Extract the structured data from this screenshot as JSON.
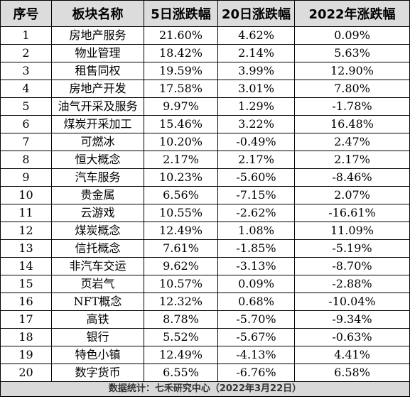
{
  "headers": [
    "序号",
    "板块名称",
    "5日涨跌幅",
    "20日涨跌幅",
    "2022年涨跌幅"
  ],
  "rows": [
    [
      "1",
      "房地产服务",
      "21.60%",
      "4.62%",
      "0.09%"
    ],
    [
      "2",
      "物业管理",
      "18.42%",
      "2.14%",
      "5.63%"
    ],
    [
      "3",
      "租售同权",
      "19.59%",
      "3.99%",
      "12.90%"
    ],
    [
      "4",
      "房地产开发",
      "17.58%",
      "3.01%",
      "7.80%"
    ],
    [
      "5",
      "油气开采及服务",
      "9.97%",
      "1.29%",
      "-1.78%"
    ],
    [
      "6",
      "煤炭开采加工",
      "15.46%",
      "3.22%",
      "16.48%"
    ],
    [
      "7",
      "可燃冰",
      "10.20%",
      "-0.49%",
      "2.47%"
    ],
    [
      "8",
      "恒大概念",
      "2.17%",
      "2.17%",
      "2.17%"
    ],
    [
      "9",
      "汽车服务",
      "10.23%",
      "-5.60%",
      "-8.46%"
    ],
    [
      "10",
      "贵金属",
      "6.56%",
      "-7.15%",
      "2.07%"
    ],
    [
      "11",
      "云游戏",
      "10.55%",
      "-2.62%",
      "-16.61%"
    ],
    [
      "12",
      "煤炭概念",
      "12.49%",
      "1.08%",
      "11.09%"
    ],
    [
      "13",
      "信托概念",
      "7.61%",
      "-1.85%",
      "-5.19%"
    ],
    [
      "14",
      "非汽车交运",
      "9.62%",
      "-3.13%",
      "-8.70%"
    ],
    [
      "15",
      "页岩气",
      "10.57%",
      "0.09%",
      "-2.88%"
    ],
    [
      "16",
      "NFT概念",
      "12.32%",
      "0.68%",
      "-10.04%"
    ],
    [
      "17",
      "高铁",
      "8.78%",
      "-5.70%",
      "-9.34%"
    ],
    [
      "18",
      "银行",
      "5.52%",
      "-5.67%",
      "-0.63%"
    ],
    [
      "19",
      "特色小镇",
      "12.49%",
      "-4.13%",
      "4.41%"
    ],
    [
      "20",
      "数字货币",
      "6.55%",
      "-6.76%",
      "6.58%"
    ]
  ],
  "footer": "数据统计：七禾研究中心（2022年3月22日）",
  "colors": {
    "header_bg": "#dcdcdc",
    "footer_bg": "#d9d9d9",
    "border": "#000000"
  }
}
